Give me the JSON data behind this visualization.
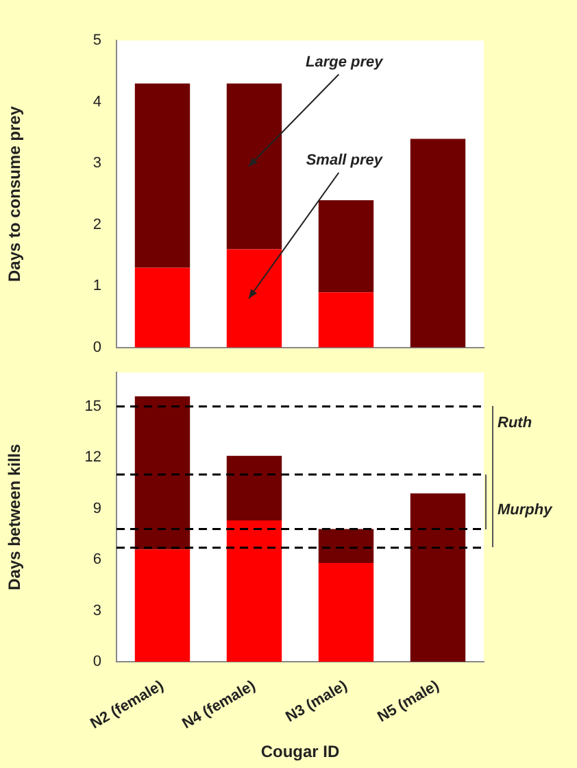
{
  "chart_data": [
    {
      "type": "bar",
      "ylabel": "Days to consume prey",
      "categories": [
        null,
        null,
        null,
        null
      ],
      "stacked": true,
      "series": [
        {
          "color": "#ff0000",
          "values": [
            1.3,
            1.6,
            0.9,
            0
          ]
        },
        {
          "color": "#700000",
          "values": [
            3.0,
            2.7,
            1.5,
            3.4
          ]
        }
      ],
      "ylim": [
        0,
        5
      ],
      "yticks": [
        0,
        1,
        2,
        3,
        4,
        5
      ],
      "tick_labels": "y",
      "annotations": [
        "Large prey",
        "Small prey"
      ]
    },
    {
      "type": "bar",
      "ylabel": "Days between kills",
      "xlabel": "Cougar ID",
      "categories": [
        "N2 (female)",
        "N4 (female)",
        "N3 (male)",
        "N5 (male)"
      ],
      "stacked": true,
      "series": [
        {
          "color": "#ff0000",
          "values": [
            6.6,
            8.3,
            5.8,
            0
          ]
        },
        {
          "color": "#700000",
          "values": [
            9.0,
            3.8,
            2.0,
            9.9
          ]
        }
      ],
      "ylim": [
        0,
        17
      ],
      "yticks": [
        0,
        3,
        6,
        9,
        12,
        15
      ],
      "ref_lines": [
        {
          "axis": "y",
          "value": 15,
          "label": "Ruth",
          "line_style": "dashed"
        },
        {
          "axis": "y",
          "value": 6.7,
          "line_style": "dashed"
        },
        {
          "axis": "y",
          "value": 11,
          "label": "Murphy",
          "line_style": "dashed"
        },
        {
          "axis": "y",
          "value": 7.8,
          "line_style": "dashed"
        }
      ]
    }
  ]
}
